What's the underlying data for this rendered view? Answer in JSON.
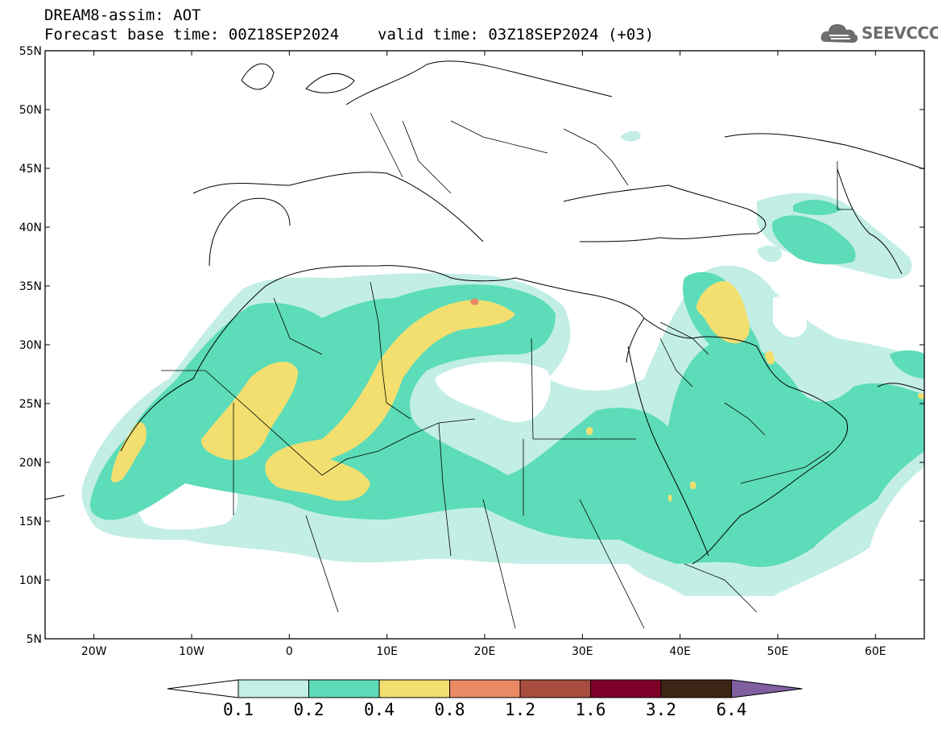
{
  "header": {
    "line1": "DREAM8-assim: AOT",
    "base_time": "Forecast base time: 00Z18SEP2024",
    "valid_time": "valid time: 03Z18SEP2024 (+03)"
  },
  "logo": {
    "text": "SEEVCCC",
    "icon": "cloud-icon"
  },
  "map": {
    "lat_labels": [
      "55N",
      "50N",
      "45N",
      "40N",
      "35N",
      "30N",
      "25N",
      "20N",
      "15N",
      "10N",
      "5N"
    ],
    "lon_labels": [
      "20W",
      "10W",
      "0",
      "10E",
      "20E",
      "30E",
      "40E",
      "50E",
      "60E"
    ],
    "lon_range": [
      -25,
      65
    ],
    "lat_range": [
      5,
      55
    ],
    "colors": {
      "level_0_1_0_2": "#c2eee6",
      "level_0_2_0_4": "#5cdcb8",
      "level_0_4_0_8": "#f2df70",
      "level_0_8_1_2": "#ea8a64",
      "level_1_2_1_6": "#a84d3e",
      "level_1_6_3_2": "#7d0028",
      "level_3_2_6_4": "#3d2414",
      "level_above_6_4": "#8060a0"
    }
  },
  "colorbar": {
    "labels": [
      "0.1",
      "0.2",
      "0.4",
      "0.8",
      "1.2",
      "1.6",
      "3.2",
      "6.4"
    ],
    "colors": [
      "#c2eee6",
      "#5cdcb8",
      "#f2df70",
      "#ea8a64",
      "#a84d3e",
      "#7d0028",
      "#3d2414"
    ],
    "low_end_color": "#ffffff",
    "high_end_color": "#8060a0"
  }
}
